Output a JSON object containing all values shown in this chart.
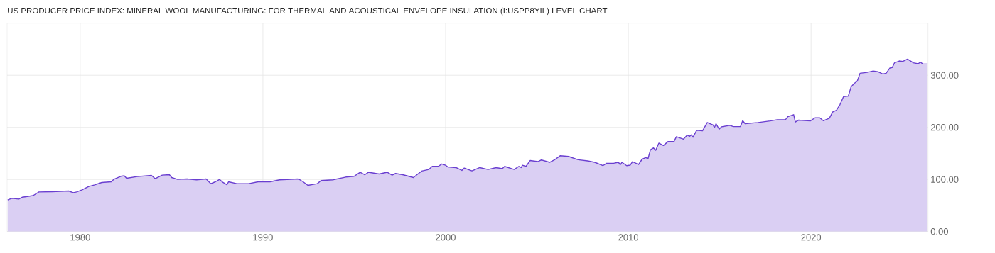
{
  "chart_data": {
    "type": "area",
    "title": "US PRODUCER PRICE INDEX: MINERAL WOOL MANUFACTURING: FOR THERMAL AND ACOUSTICAL ENVELOPE INSULATION (I:USPP8YIL) LEVEL CHART",
    "x": [
      1976.03,
      1976.25,
      1976.64,
      1976.84,
      1977.42,
      1977.74,
      1978.46,
      1979.37,
      1979.62,
      1979.8,
      1980.08,
      1980.47,
      1980.79,
      1981.18,
      1981.7,
      1981.83,
      1982.22,
      1982.41,
      1982.54,
      1983.12,
      1983.9,
      1984.1,
      1984.49,
      1984.88,
      1985.01,
      1985.33,
      1985.85,
      1986.37,
      1986.89,
      1987.15,
      1987.4,
      1987.63,
      1987.8,
      1988.03,
      1988.12,
      1988.57,
      1989.22,
      1989.74,
      1990.39,
      1990.91,
      1991.95,
      1992.2,
      1992.46,
      1992.98,
      1993.18,
      1993.82,
      1994.54,
      1994.99,
      1995.32,
      1995.58,
      1995.77,
      1996.36,
      1996.81,
      1997.07,
      1997.26,
      1997.65,
      1998.24,
      1998.43,
      1998.69,
      1999.08,
      1999.27,
      1999.6,
      1999.79,
      1999.99,
      2000.12,
      2000.57,
      2000.89,
      2001.02,
      2001.44,
      2001.87,
      2002.32,
      2002.77,
      2003.1,
      2003.23,
      2003.75,
      2004.01,
      2004.14,
      2004.2,
      2004.4,
      2004.63,
      2005.05,
      2005.24,
      2005.69,
      2005.95,
      2006.28,
      2006.73,
      2007.25,
      2007.77,
      2008.16,
      2008.61,
      2008.81,
      2009.19,
      2009.46,
      2009.56,
      2009.65,
      2009.91,
      2010.1,
      2010.23,
      2010.56,
      2010.75,
      2010.95,
      2011.08,
      2011.21,
      2011.38,
      2011.5,
      2011.67,
      2011.92,
      2012.18,
      2012.5,
      2012.63,
      2013.02,
      2013.22,
      2013.35,
      2013.45,
      2013.54,
      2013.74,
      2014.06,
      2014.32,
      2014.64,
      2014.71,
      2014.8,
      2014.97,
      2015.1,
      2015.56,
      2015.75,
      2016.14,
      2016.26,
      2016.39,
      2017.11,
      2017.76,
      2018.15,
      2018.6,
      2018.73,
      2019.05,
      2019.14,
      2019.31,
      2019.96,
      2020.22,
      2020.48,
      2020.67,
      2021.0,
      2021.19,
      2021.39,
      2021.58,
      2021.78,
      2022.04,
      2022.19,
      2022.36,
      2022.53,
      2022.68,
      2023.07,
      2023.4,
      2023.66,
      2023.92,
      2024.11,
      2024.31,
      2024.44,
      2024.57,
      2024.83,
      2025.02,
      2025.28,
      2025.6,
      2025.86,
      2025.99,
      2026.12,
      2026.38
    ],
    "series": [
      {
        "color": "#6a3fd0",
        "values": [
          60.6,
          63.7,
          62.3,
          66,
          69,
          76,
          76.4,
          77.8,
          74.6,
          76,
          79.7,
          86.5,
          89.6,
          94.1,
          95.5,
          100,
          106,
          107,
          102.3,
          105.6,
          107.8,
          101.5,
          108.3,
          109.1,
          103.7,
          100.1,
          101,
          99.2,
          101,
          91.9,
          95.5,
          100,
          94.6,
          90,
          95.5,
          91.9,
          91.9,
          95.5,
          95.5,
          99.2,
          101,
          95.5,
          88.7,
          91.9,
          97.8,
          99.2,
          104.6,
          106,
          113.8,
          109.1,
          113.8,
          110.5,
          113.8,
          108.3,
          111.5,
          109.1,
          103.7,
          109.1,
          116,
          119.2,
          125.1,
          125.1,
          129.6,
          127.4,
          124.1,
          122.8,
          117.3,
          121.9,
          116.5,
          122.8,
          119.2,
          122.8,
          120.6,
          125.1,
          119.2,
          125.1,
          122.8,
          127.4,
          125.1,
          136.4,
          134.2,
          137.4,
          132.9,
          137.4,
          145.6,
          144.2,
          137.8,
          135.6,
          132.9,
          126.5,
          131,
          131,
          132.9,
          128.2,
          132.9,
          126.5,
          127.4,
          134.2,
          128.8,
          138.7,
          141.9,
          140.1,
          156.9,
          160.6,
          156.1,
          169.7,
          165.1,
          172.9,
          172.9,
          182,
          177.4,
          185.1,
          182.8,
          185.5,
          181,
          194.3,
          193.3,
          209.3,
          204.6,
          199.2,
          207,
          196.5,
          201.1,
          203.8,
          201.5,
          201.5,
          212.8,
          207,
          209.3,
          212.4,
          214.7,
          214.7,
          220.6,
          224.3,
          210.2,
          213.8,
          212.4,
          218.3,
          218.3,
          212.8,
          217.5,
          229.7,
          232.9,
          243.4,
          259.2,
          260.2,
          277.5,
          284.3,
          288.8,
          303.8,
          305.6,
          308.3,
          306.9,
          302.5,
          303.8,
          313.8,
          314.7,
          323.9,
          327.4,
          326.6,
          331.1,
          323.9,
          322,
          325.2,
          321.5,
          321.5
        ]
      }
    ],
    "xlim": [
      1976.0,
      2026.4
    ],
    "ylim": [
      0,
      400
    ],
    "xticks": [
      1980,
      1990,
      2000,
      2010,
      2020
    ],
    "yticks": [
      {
        "value": 0,
        "label": "0.00"
      },
      {
        "value": 100,
        "label": "100.00"
      },
      {
        "value": 200,
        "label": "200.00"
      },
      {
        "value": 300,
        "label": "300.00"
      }
    ],
    "grid": true
  }
}
